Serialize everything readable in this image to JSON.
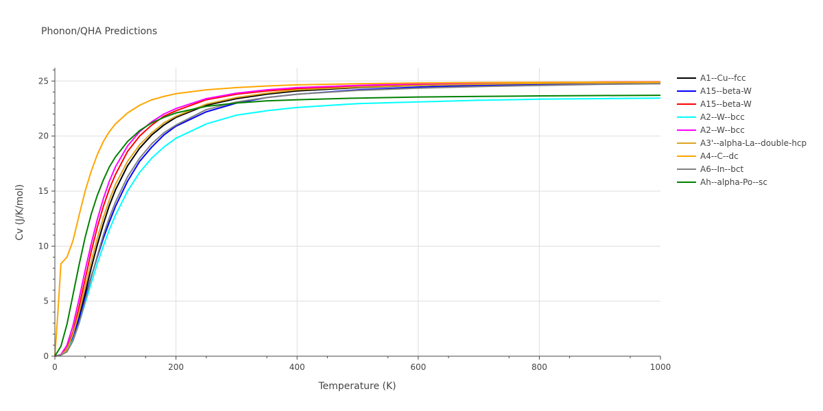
{
  "chart_data": {
    "type": "line",
    "title": "Phonon/QHA Predictions",
    "xlabel": "Temperature (K)",
    "ylabel": "Cv (J/K/mol)",
    "xlim": [
      0,
      1000
    ],
    "ylim": [
      0,
      26.2
    ],
    "xticks": [
      0,
      200,
      400,
      600,
      800,
      1000
    ],
    "xtick_labels": [
      "0",
      "200",
      "400",
      "600",
      "800",
      "1000"
    ],
    "yticks": [
      0,
      5,
      10,
      15,
      20,
      25
    ],
    "ytick_labels": [
      "0",
      "5",
      "10",
      "15",
      "20",
      "25"
    ],
    "grid": true,
    "legend_position": "right",
    "series": [
      {
        "name": "A1--Cu--fcc",
        "color": "#000000",
        "x": [
          0,
          10,
          20,
          30,
          40,
          50,
          60,
          70,
          80,
          90,
          100,
          120,
          140,
          160,
          180,
          200,
          250,
          300,
          350,
          400,
          500,
          600,
          700,
          800,
          900,
          1000
        ],
        "y": [
          0,
          0.1,
          0.5,
          1.7,
          3.5,
          5.7,
          8.0,
          10.1,
          12.0,
          13.7,
          15.1,
          17.3,
          18.9,
          20.1,
          21.0,
          21.7,
          22.8,
          23.4,
          23.8,
          24.1,
          24.4,
          24.6,
          24.7,
          24.8,
          24.85,
          24.9
        ]
      },
      {
        "name": "A15--beta-W",
        "color": "#0000ff",
        "x": [
          0,
          10,
          20,
          30,
          40,
          50,
          60,
          70,
          80,
          90,
          100,
          120,
          140,
          160,
          180,
          200,
          250,
          300,
          350,
          400,
          500,
          600,
          700,
          800,
          900,
          1000
        ],
        "y": [
          0,
          0.1,
          0.6,
          1.8,
          3.4,
          5.3,
          7.2,
          9.0,
          10.7,
          12.2,
          13.6,
          15.9,
          17.7,
          19.0,
          20.1,
          20.9,
          22.2,
          23.0,
          23.5,
          23.8,
          24.2,
          24.45,
          24.6,
          24.7,
          24.75,
          24.8
        ]
      },
      {
        "name": "A15--beta-W",
        "color": "#ff0000",
        "x": [
          0,
          10,
          20,
          30,
          40,
          50,
          60,
          70,
          80,
          90,
          100,
          120,
          140,
          160,
          180,
          200,
          250,
          300,
          350,
          400,
          500,
          600,
          700,
          800,
          900,
          1000
        ],
        "y": [
          0,
          0.1,
          0.7,
          2.2,
          4.5,
          7.0,
          9.5,
          11.7,
          13.6,
          15.2,
          16.5,
          18.6,
          20.0,
          21.0,
          21.8,
          22.3,
          23.3,
          23.8,
          24.1,
          24.3,
          24.55,
          24.7,
          24.8,
          24.85,
          24.9,
          24.92
        ]
      },
      {
        "name": "A2--W--bcc",
        "color": "#00ffff",
        "x": [
          0,
          10,
          20,
          30,
          40,
          50,
          60,
          70,
          80,
          90,
          100,
          120,
          140,
          160,
          180,
          200,
          250,
          300,
          350,
          400,
          500,
          600,
          700,
          800,
          900,
          1000
        ],
        "y": [
          0,
          0.1,
          0.5,
          1.5,
          3.0,
          4.8,
          6.6,
          8.4,
          10.0,
          11.5,
          12.8,
          15.0,
          16.7,
          18.0,
          19.0,
          19.8,
          21.1,
          21.9,
          22.3,
          22.6,
          22.95,
          23.1,
          23.25,
          23.35,
          23.4,
          23.45
        ]
      },
      {
        "name": "A2--W--bcc",
        "color": "#ff00ff",
        "x": [
          0,
          10,
          20,
          30,
          40,
          50,
          60,
          70,
          80,
          90,
          100,
          120,
          140,
          160,
          180,
          200,
          250,
          300,
          350,
          400,
          500,
          600,
          700,
          800,
          900,
          1000
        ],
        "y": [
          0,
          0.15,
          1.0,
          2.8,
          5.2,
          7.8,
          10.2,
          12.4,
          14.3,
          15.9,
          17.2,
          19.1,
          20.4,
          21.3,
          22.0,
          22.5,
          23.4,
          23.9,
          24.2,
          24.4,
          24.6,
          24.75,
          24.82,
          24.87,
          24.9,
          24.93
        ]
      },
      {
        "name": "A3'--alpha-La--double-hcp",
        "color": "#daa520",
        "x": [
          0,
          10,
          20,
          30,
          40,
          50,
          60,
          70,
          80,
          90,
          100,
          120,
          140,
          160,
          180,
          200,
          250,
          300,
          350,
          400,
          500,
          600,
          700,
          800,
          900,
          1000
        ],
        "y": [
          0,
          0.1,
          0.6,
          2.0,
          4.0,
          6.3,
          8.6,
          10.7,
          12.6,
          14.2,
          15.6,
          17.7,
          19.2,
          20.3,
          21.2,
          21.8,
          22.9,
          23.5,
          23.9,
          24.2,
          24.45,
          24.6,
          24.7,
          24.78,
          24.83,
          24.87
        ]
      },
      {
        "name": "A4--C--dc",
        "color": "#ffa500",
        "x": [
          0,
          5,
          10,
          20,
          30,
          40,
          50,
          60,
          70,
          80,
          90,
          100,
          120,
          140,
          160,
          180,
          200,
          250,
          300,
          350,
          400,
          500,
          600,
          700,
          800,
          900,
          1000
        ],
        "y": [
          0,
          4.0,
          8.4,
          9.0,
          10.5,
          12.8,
          15.0,
          16.8,
          18.3,
          19.5,
          20.4,
          21.1,
          22.1,
          22.8,
          23.3,
          23.6,
          23.85,
          24.2,
          24.4,
          24.55,
          24.65,
          24.75,
          24.82,
          24.86,
          24.88,
          24.9,
          24.92
        ]
      },
      {
        "name": "A6--In--bct",
        "color": "#808080",
        "x": [
          0,
          10,
          20,
          30,
          40,
          50,
          60,
          70,
          80,
          90,
          100,
          120,
          140,
          160,
          180,
          200,
          250,
          300,
          350,
          400,
          500,
          600,
          700,
          800,
          900,
          1000
        ],
        "y": [
          0,
          0.1,
          0.4,
          1.4,
          3.0,
          5.0,
          7.1,
          9.1,
          11.0,
          12.6,
          14.0,
          16.3,
          18.0,
          19.3,
          20.3,
          21.0,
          22.4,
          23.1,
          23.5,
          23.8,
          24.15,
          24.35,
          24.5,
          24.6,
          24.7,
          24.75
        ]
      },
      {
        "name": "Ah--alpha-Po--sc",
        "color": "#008000",
        "x": [
          0,
          10,
          20,
          30,
          40,
          50,
          60,
          70,
          80,
          90,
          100,
          120,
          140,
          160,
          180,
          200,
          250,
          300,
          350,
          400,
          500,
          600,
          700,
          800,
          900,
          1000
        ],
        "y": [
          0,
          0.9,
          2.9,
          5.6,
          8.3,
          10.8,
          12.9,
          14.6,
          16.0,
          17.2,
          18.1,
          19.5,
          20.5,
          21.2,
          21.7,
          22.1,
          22.7,
          23.0,
          23.2,
          23.3,
          23.45,
          23.55,
          23.6,
          23.65,
          23.68,
          23.7
        ]
      }
    ]
  }
}
